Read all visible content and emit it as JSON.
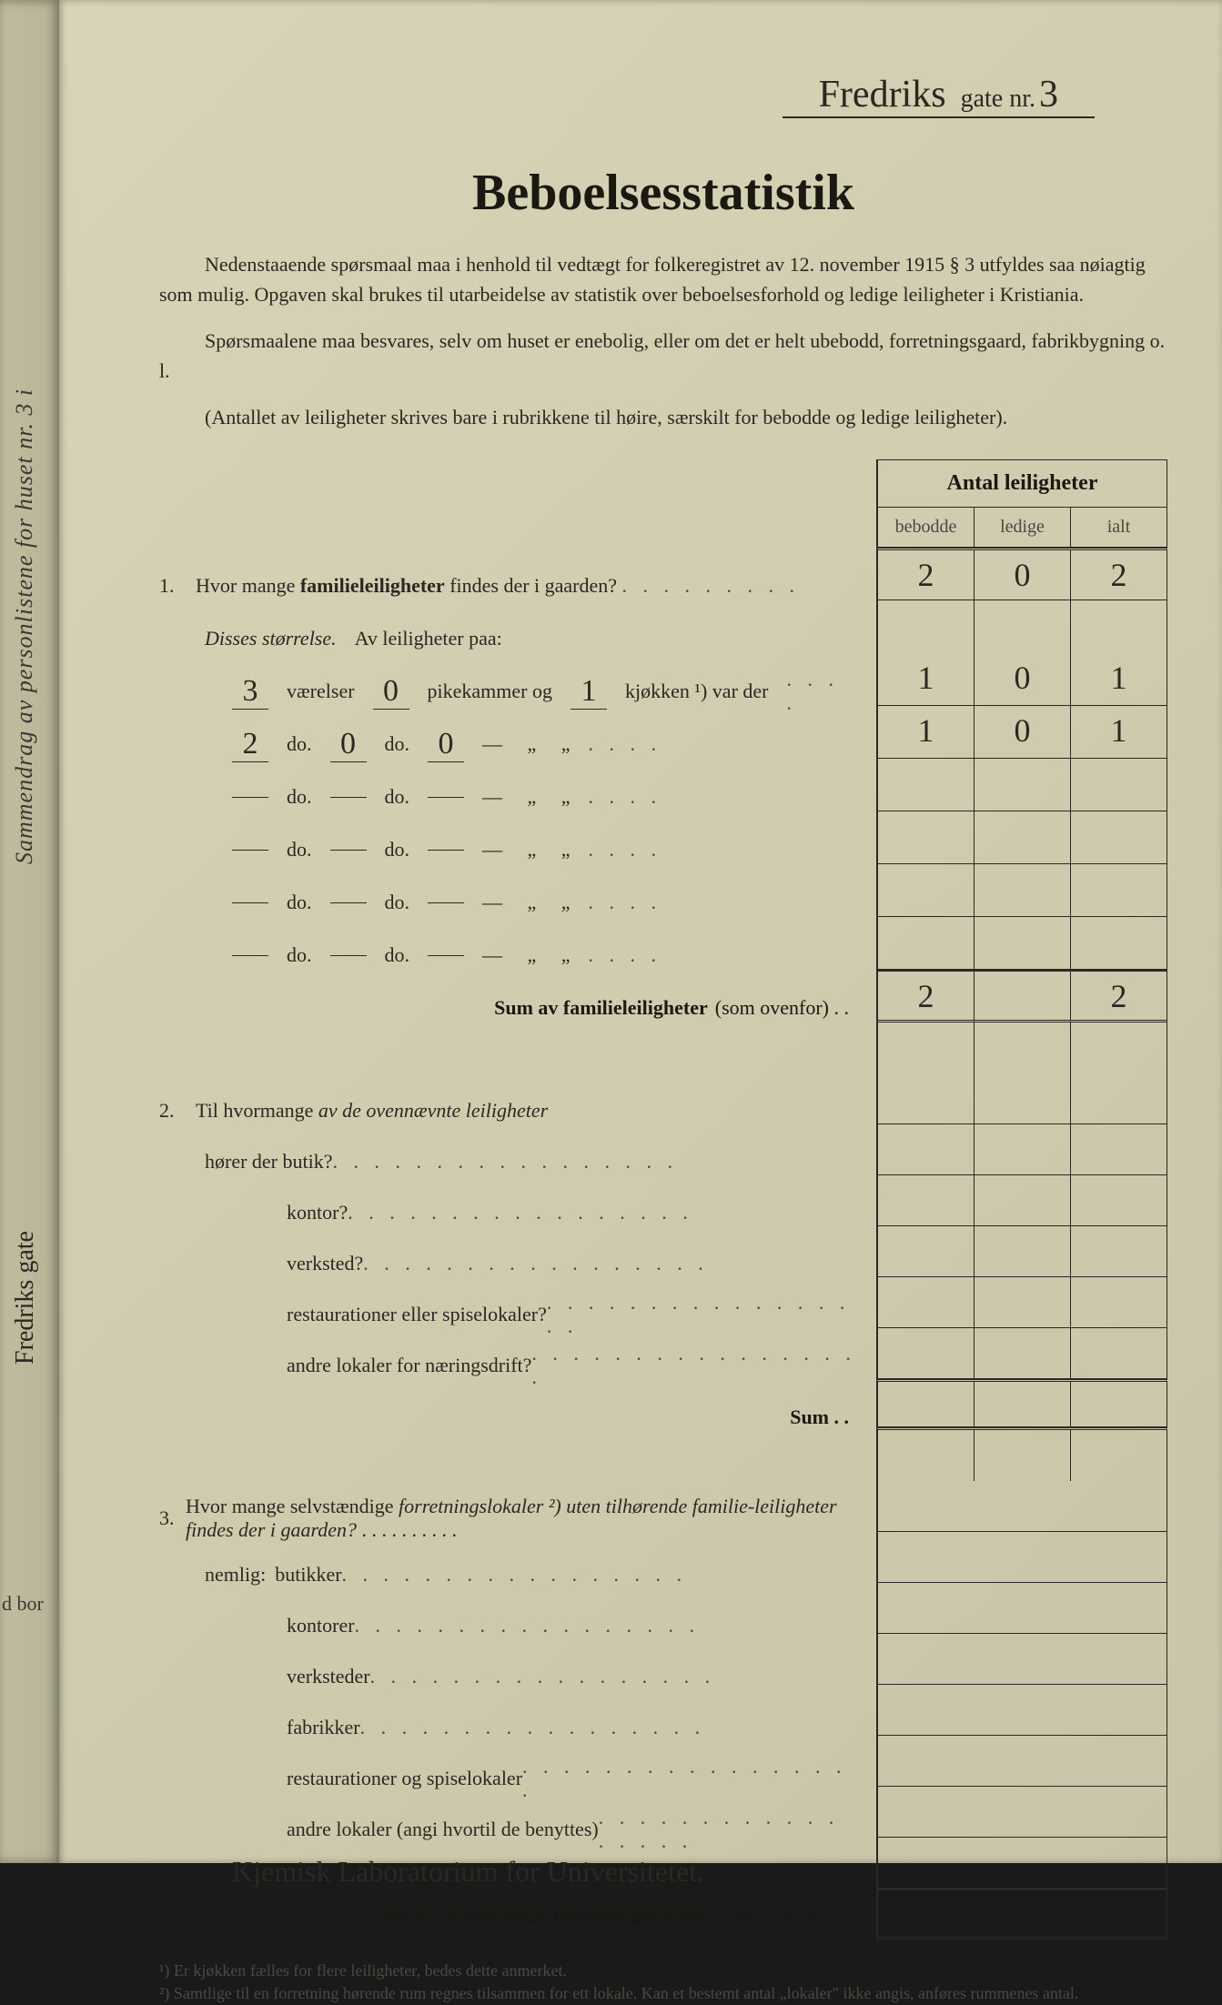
{
  "header": {
    "street_name_hw": "Fredriks",
    "gate_label": "gate nr.",
    "gate_number_hw": "3"
  },
  "title": "Beboelsesstatistik",
  "intro_p1": "Nedenstaaende spørsmaal maa i henhold til vedtægt for folkeregistret av 12. november 1915 § 3 utfyldes saa nøiagtig som mulig. Opgaven skal brukes til utarbeidelse av statistik over beboelsesforhold og ledige leiligheter i Kristiania.",
  "intro_p2": "Spørsmaalene maa besvares, selv om huset er enebolig, eller om det er helt ubebodd, forretningsgaard, fabrikbygning o. l.",
  "intro_note": "(Antallet av leiligheter skrives bare i rubrikkene til høire, særskilt for bebodde og ledige leiligheter).",
  "table_header": {
    "title": "Antal leiligheter",
    "col1": "bebodde",
    "col2": "ledige",
    "col3": "ialt"
  },
  "q1": {
    "num": "1.",
    "text_a": "Hvor mange ",
    "text_b": "familieleiligheter",
    "text_c": " findes der i gaarden?",
    "row": {
      "bebodde": "2",
      "ledige": "0",
      "ialt": "2"
    },
    "disses": "Disses størrelse.",
    "av_leil": "Av leiligheter paa:",
    "rooms": [
      {
        "vaer": "3",
        "pike": "0",
        "kjok": "1",
        "bebodde": "1",
        "ledige": "0",
        "ialt": "1"
      },
      {
        "vaer": "2",
        "pike": "0",
        "kjok": "0",
        "bebodde": "1",
        "ledige": "0",
        "ialt": "1"
      },
      {
        "vaer": "",
        "pike": "",
        "kjok": "",
        "bebodde": "",
        "ledige": "",
        "ialt": ""
      },
      {
        "vaer": "",
        "pike": "",
        "kjok": "",
        "bebodde": "",
        "ledige": "",
        "ialt": ""
      },
      {
        "vaer": "",
        "pike": "",
        "kjok": "",
        "bebodde": "",
        "ledige": "",
        "ialt": ""
      },
      {
        "vaer": "",
        "pike": "",
        "kjok": "",
        "bebodde": "",
        "ledige": "",
        "ialt": ""
      }
    ],
    "labels": {
      "vaerelser": "værelser",
      "do": "do.",
      "pikekammer": "pikekammer og",
      "kjokken": "kjøkken ¹) var der",
      "dash": "—",
      "quote": "„"
    },
    "sum_label": "Sum av familieleiligheter",
    "sum_note": "(som ovenfor) . .",
    "sum": {
      "bebodde": "2",
      "ledige": "",
      "ialt": "2"
    }
  },
  "q2": {
    "num": "2.",
    "text_a": "Til hvormange ",
    "text_b": "av de ovennævnte leiligheter",
    "lines": [
      "hører der butik?",
      "kontor?",
      "verksted?",
      "restaurationer eller spiselokaler?",
      "andre lokaler for næringsdrift?"
    ],
    "sum_label": "Sum . ."
  },
  "q3": {
    "num": "3.",
    "text_a": "Hvor mange selvstændige ",
    "text_b": "forretningslokaler ²)",
    "text_c": " uten tilhørende familie-leiligheter findes der i gaarden?",
    "nemlig": "nemlig:",
    "lines": [
      "butikker",
      "kontorer",
      "verksteder",
      "fabrikker",
      "restaurationer og spiselokaler",
      "andre lokaler (angi hvortil de benyttes)"
    ],
    "handwritten_note": "Kjemisk Laboratorium for Universitetet.",
    "sum_label": "Sum av selvstændige forretningslokaler",
    "sum_note": "(som ovenfor) . ."
  },
  "footnotes": {
    "f1": "¹) Er kjøkken fælles for flere leiligheter, bedes dette anmerket.",
    "f2": "²) Samtlige til en forretning hørende rum regnes tilsammen for ett lokale. Kan et bestemt antal „lokaler\" ikke angis, anføres rummenes antal."
  },
  "spine": {
    "text1": "Sammendrag av personlistene for huset nr. 3 i",
    "text2": "Fredriks gate",
    "dbor": "d bor"
  }
}
